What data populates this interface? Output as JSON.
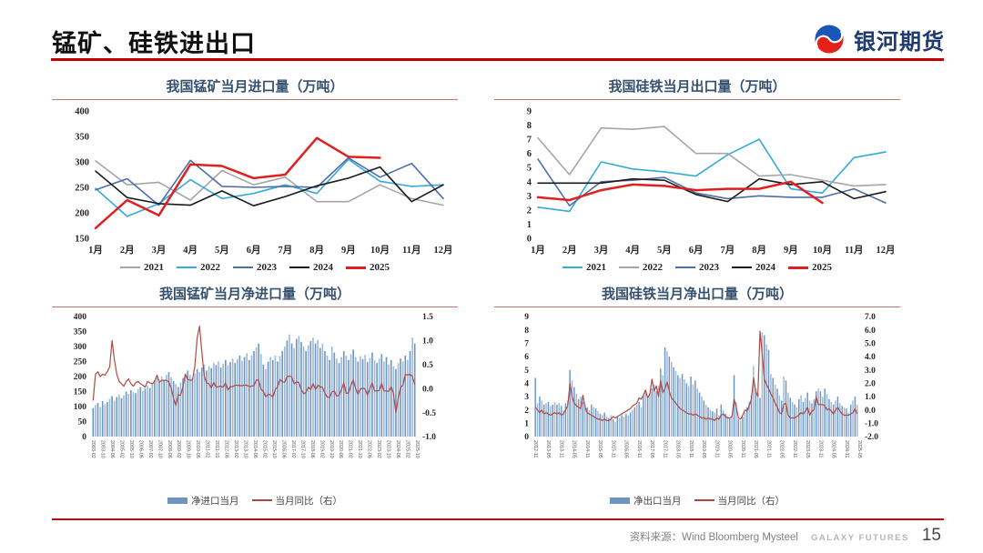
{
  "header": {
    "title": "锰矿、硅铁进出口",
    "logo_text": "银河期货"
  },
  "footer": {
    "source": "资料来源：Wind Bloomberg Mysteel",
    "brand": "GALAXY FUTURES",
    "page": "15"
  },
  "colors": {
    "accent_red": "#c00000",
    "panel_title": "#35516f",
    "panel_underline": "#c4756b",
    "bar_blue_dark": "#6e95c2",
    "bar_blue_light": "#9db9dc",
    "combo_line_red": "#ac4a45"
  },
  "chart_data": [
    {
      "type": "line",
      "title": "我国锰矿当月进口量（万吨）",
      "categories": [
        "1月",
        "2月",
        "3月",
        "4月",
        "5月",
        "6月",
        "7月",
        "8月",
        "9月",
        "10月",
        "11月",
        "12月"
      ],
      "ylim": [
        150,
        400
      ],
      "yticks": [
        150,
        200,
        250,
        300,
        350,
        400
      ],
      "grid": false,
      "legend_position": "bottom",
      "series": [
        {
          "name": "2021",
          "color": "#a6a6a6",
          "width": 1.6,
          "values": [
            302,
            255,
            260,
            225,
            283,
            255,
            270,
            222,
            222,
            255,
            228,
            215
          ]
        },
        {
          "name": "2022",
          "color": "#35aadc",
          "width": 1.6,
          "values": [
            248,
            193,
            218,
            265,
            228,
            238,
            255,
            238,
            305,
            262,
            252,
            255
          ]
        },
        {
          "name": "2023",
          "color": "#4d6fa8",
          "width": 1.6,
          "values": [
            245,
            267,
            215,
            303,
            252,
            250,
            252,
            250,
            308,
            270,
            297,
            228
          ]
        },
        {
          "name": "2024",
          "color": "#1a1a1a",
          "width": 1.6,
          "values": [
            282,
            230,
            218,
            215,
            243,
            214,
            232,
            253,
            268,
            290,
            222,
            255
          ]
        },
        {
          "name": "2025",
          "color": "#e02020",
          "width": 2.5,
          "values": [
            170,
            225,
            195,
            295,
            292,
            268,
            275,
            347,
            310,
            308
          ]
        }
      ]
    },
    {
      "type": "line",
      "title": "我国硅铁当月出口量（万吨）",
      "categories": [
        "1月",
        "2月",
        "3月",
        "4月",
        "5月",
        "6月",
        "7月",
        "8月",
        "9月",
        "10月",
        "11月",
        "12月"
      ],
      "ylim": [
        0,
        9
      ],
      "yticks": [
        0,
        1,
        2,
        3,
        4,
        5,
        6,
        7,
        8,
        9
      ],
      "grid": false,
      "legend_position": "bottom",
      "series": [
        {
          "name": "2021",
          "color": "#35aadc",
          "width": 1.6,
          "values": [
            2.2,
            1.9,
            5.4,
            4.9,
            4.7,
            4.4,
            5.9,
            7.0,
            3.5,
            3.2,
            5.7,
            6.1
          ]
        },
        {
          "name": "2022",
          "color": "#a6a6a6",
          "width": 1.6,
          "values": [
            7.1,
            4.5,
            7.8,
            7.7,
            7.9,
            6.0,
            6.0,
            4.4,
            4.5,
            4.1,
            3.7,
            3.8
          ]
        },
        {
          "name": "2023",
          "color": "#4d6fa8",
          "width": 1.6,
          "values": [
            5.6,
            2.3,
            4.0,
            4.1,
            4.3,
            3.2,
            2.8,
            3.0,
            2.9,
            2.9,
            3.5,
            2.5
          ]
        },
        {
          "name": "2024",
          "color": "#1a1a1a",
          "width": 1.6,
          "values": [
            3.9,
            3.9,
            3.9,
            4.2,
            4.1,
            3.1,
            2.6,
            4.2,
            3.8,
            4.0,
            2.8,
            3.3
          ]
        },
        {
          "name": "2025",
          "color": "#e02020",
          "width": 2.5,
          "values": [
            2.9,
            2.7,
            3.4,
            3.8,
            3.7,
            3.4,
            3.5,
            3.5,
            4.0,
            2.5
          ]
        }
      ]
    },
    {
      "type": "bar",
      "title": "我国锰矿当月净进口量（万吨）",
      "bar_label": "净进口当月",
      "line_label": "当月同比（右）",
      "ylim_left": [
        0,
        400
      ],
      "yticks_left": [
        0,
        50,
        100,
        150,
        200,
        250,
        300,
        350,
        400
      ],
      "ylim_right": [
        -1.0,
        1.5
      ],
      "yticks_right": [
        -1.0,
        -0.5,
        0.0,
        0.5,
        1.0,
        1.5
      ],
      "grid": false,
      "legend_position": "bottom",
      "x_tick_labels": [
        "2003-02",
        "2003-10",
        "2004-06",
        "2005-02",
        "2005-10",
        "2006-06",
        "2007-02",
        "2007-10",
        "2008-06",
        "2009-02",
        "2009-10",
        "2010-06",
        "2011-02",
        "2011-10",
        "2012-06",
        "2013-02",
        "2013-10",
        "2014-06",
        "2015-02",
        "2015-10",
        "2016-06",
        "2017-02",
        "2017-10",
        "2018-06",
        "2019-02",
        "2019-10",
        "2020-06",
        "2021-02",
        "2021-10",
        "2022-06",
        "2023-02",
        "2023-10",
        "2024-06",
        "2025-02",
        "2025-10"
      ],
      "bars": [
        95,
        105,
        112,
        98,
        118,
        108,
        115,
        125,
        135,
        120,
        132,
        140,
        128,
        138,
        150,
        142,
        155,
        148,
        145,
        158,
        165,
        152,
        160,
        170,
        162,
        175,
        188,
        195,
        182,
        200,
        190,
        205,
        215,
        198,
        185,
        175,
        165,
        180,
        195,
        210,
        220,
        205,
        195,
        210,
        225,
        215,
        230,
        240,
        220,
        235,
        228,
        245,
        238,
        250,
        230,
        242,
        255,
        238,
        248,
        260,
        245,
        258,
        270,
        252,
        265,
        278,
        255,
        270,
        285,
        298,
        310,
        275,
        240,
        225,
        250,
        265,
        255,
        270,
        250,
        268,
        285,
        300,
        320,
        340,
        310,
        295,
        325,
        335,
        315,
        300,
        285,
        305,
        318,
        330,
        310,
        322,
        295,
        310,
        285,
        270,
        255,
        300,
        280,
        260,
        245,
        265,
        285,
        270,
        255,
        275,
        290,
        265,
        250,
        268,
        258,
        272,
        248,
        262,
        280,
        255,
        245,
        260,
        275,
        250,
        265,
        240,
        255,
        235,
        225,
        245,
        260,
        250,
        270,
        255,
        285,
        330,
        310
      ],
      "line": [
        -0.25,
        0.3,
        0.35,
        0.25,
        0.3,
        0.28,
        0.35,
        0.45,
        1.0,
        0.6,
        0.3,
        0.15,
        0.1,
        0.05,
        0.15,
        0.2,
        0.1,
        0.05,
        0.12,
        0.15,
        0.1,
        0.07,
        0.03,
        0.15,
        0.12,
        0.1,
        0.15,
        0.28,
        0.13,
        0.17,
        0.17,
        0.17,
        0.14,
        0.01,
        -0.2,
        -0.35,
        -0.13,
        -0.14,
        0.04,
        0.3,
        0.19,
        0.17,
        0.18,
        0.45,
        1.05,
        1.3,
        0.75,
        0.25,
        0.12,
        0.1,
        0.01,
        0.13,
        0.03,
        0.04,
        0.05,
        0.03,
        0.12,
        -0.03,
        0.04,
        0.04,
        0.07,
        0.07,
        0.06,
        0.06,
        0.07,
        0.07,
        0.04,
        0.05,
        0.06,
        0.18,
        0.17,
        -0.01,
        -0.06,
        -0.17,
        -0.12,
        -0.13,
        -0.18,
        -0.02,
        0.04,
        0.19,
        0.14,
        0.13,
        0.25,
        0.26,
        0.24,
        0.1,
        0.14,
        0.12,
        -0.02,
        -0.11,
        -0.08,
        0.03,
        -0.02,
        0.1,
        -0.02,
        0.07,
        0.04,
        0.02,
        -0.1,
        -0.18,
        -0.18,
        -0.07,
        -0.05,
        -0.16,
        -0.14,
        -0.02,
        0.12,
        -0.1,
        -0.09,
        0.06,
        0.18,
        0.0,
        -0.12,
        -0.01,
        0.01,
        -0.01,
        -0.14,
        -0.01,
        0.12,
        -0.05,
        -0.05,
        -0.04,
        0.11,
        -0.05,
        -0.05,
        -0.06,
        0.04,
        -0.1,
        -0.5,
        -0.2,
        0.02,
        0.07,
        0.3,
        0.28,
        0.3,
        0.25,
        0.08
      ]
    },
    {
      "type": "bar",
      "title": "我国硅铁当月净出口量（万吨）",
      "bar_label": "净出口当月",
      "line_label": "当月同比（右）",
      "ylim_left": [
        0,
        9
      ],
      "yticks_left": [
        0,
        1,
        2,
        3,
        4,
        5,
        6,
        7,
        8,
        9
      ],
      "ylim_right": [
        -2.0,
        7.0
      ],
      "yticks_right": [
        -2.0,
        -1.0,
        0.0,
        1.0,
        2.0,
        3.0,
        4.0,
        5.0,
        6.0,
        7.0
      ],
      "grid": false,
      "legend_position": "bottom",
      "x_tick_labels": [
        "2012-11",
        "2013-05",
        "2013-11",
        "2014-05",
        "2014-11",
        "2015-05",
        "2015-11",
        "2016-05",
        "2016-11",
        "2017-05",
        "2017-11",
        "2018-05",
        "2018-11",
        "2019-05",
        "2019-11",
        "2020-05",
        "2020-11",
        "2021-05",
        "2021-11",
        "2022-05",
        "2022-11",
        "2023-05",
        "2023-11",
        "2024-05",
        "2024-11",
        "2025-05"
      ],
      "bars": [
        4.4,
        2.5,
        3.0,
        2.7,
        2.4,
        2.5,
        2.6,
        2.3,
        2.4,
        2.6,
        2.4,
        2.5,
        2.3,
        2.0,
        2.5,
        2.7,
        5.0,
        4.2,
        3.7,
        3.2,
        2.8,
        3.0,
        2.6,
        2.4,
        2.2,
        2.0,
        2.4,
        2.2,
        2.1,
        1.9,
        1.7,
        1.6,
        1.8,
        1.5,
        1.4,
        1.6,
        1.3,
        1.1,
        1.5,
        1.4,
        1.6,
        1.5,
        1.7,
        1.6,
        1.8,
        2.0,
        2.2,
        2.4,
        2.6,
        2.2,
        3.1,
        3.4,
        3.0,
        3.3,
        3.6,
        3.9,
        3.4,
        3.8,
        5.1,
        4.6,
        6.7,
        6.4,
        6.0,
        5.6,
        5.2,
        4.9,
        4.6,
        4.4,
        4.7,
        4.3,
        4.0,
        3.8,
        4.5,
        3.9,
        4.2,
        3.6,
        3.3,
        3.0,
        2.7,
        2.4,
        2.2,
        2.0,
        1.9,
        1.8,
        2.1,
        1.6,
        2.4,
        2.0,
        1.7,
        1.5,
        1.4,
        1.6,
        4.6,
        2.6,
        1.3,
        1.2,
        1.5,
        1.8,
        2.2,
        2.6,
        3.1,
        5.3,
        3.6,
        3.2,
        2.9,
        7.8,
        7.6,
        6.9,
        6.5,
        4.7,
        4.4,
        3.9,
        3.6,
        3.1,
        2.7,
        4.5,
        4.2,
        3.3,
        2.9,
        2.6,
        2.4,
        2.2,
        2.8,
        3.1,
        2.6,
        2.9,
        3.3,
        2.7,
        2.5,
        2.8,
        3.4,
        3.6,
        3.4,
        3.0,
        3.6,
        3.2,
        2.8,
        2.6,
        2.4,
        2.7,
        3.0,
        2.5,
        2.3,
        2.2,
        2.1,
        1.8,
        2.4,
        2.7,
        3.0,
        2.4
      ],
      "line": [
        0.2,
        0.0,
        -0.2,
        0.0,
        -0.3,
        -0.2,
        -0.3,
        -0.4,
        -0.3,
        -0.2,
        -0.3,
        -0.2,
        -0.4,
        -0.3,
        0.0,
        0.3,
        2.0,
        1.0,
        0.5,
        0.3,
        0.2,
        0.1,
        1.1,
        0.2,
        -0.2,
        -0.3,
        -0.4,
        -0.5,
        -0.6,
        -0.7,
        -0.7,
        -0.8,
        -0.7,
        -0.8,
        -0.8,
        -0.7,
        -0.5,
        -0.6,
        -0.5,
        -0.4,
        -0.3,
        -0.2,
        -0.1,
        0.0,
        0.1,
        0.3,
        0.4,
        0.5,
        0.9,
        0.8,
        1.1,
        1.5,
        0.9,
        1.2,
        2.3,
        1.4,
        1.8,
        1.0,
        2.2,
        1.3,
        1.6,
        2.1,
        1.4,
        0.9,
        0.7,
        0.5,
        0.3,
        0.1,
        0.0,
        -0.1,
        -0.2,
        -0.3,
        -0.3,
        -0.4,
        -0.3,
        -0.4,
        -0.5,
        -0.6,
        -0.6,
        -0.7,
        -0.6,
        -0.7,
        -0.7,
        -0.8,
        -0.6,
        -0.7,
        -0.4,
        -0.3,
        -0.5,
        -0.6,
        -0.6,
        -0.5,
        0.8,
        0.2,
        -0.6,
        -0.7,
        -0.4,
        0.0,
        -0.1,
        0.3,
        0.8,
        2.4,
        1.4,
        1.0,
        5.9,
        4.2,
        2.3,
        1.9,
        1.6,
        1.2,
        0.9,
        0.5,
        0.2,
        -0.2,
        -0.3,
        0.4,
        0.5,
        -0.4,
        -0.6,
        -0.6,
        -0.6,
        -0.5,
        -0.4,
        -0.2,
        -0.3,
        -0.1,
        0.2,
        -0.4,
        -0.1,
        0.0,
        1.0,
        0.4,
        0.4,
        0.4,
        0.3,
        0.0,
        0.1,
        -0.1,
        -0.3,
        0.0,
        0.2,
        -0.1,
        -0.3,
        -0.4,
        -0.4,
        -0.4,
        -0.3,
        -0.2,
        0.1,
        -0.3
      ]
    }
  ]
}
